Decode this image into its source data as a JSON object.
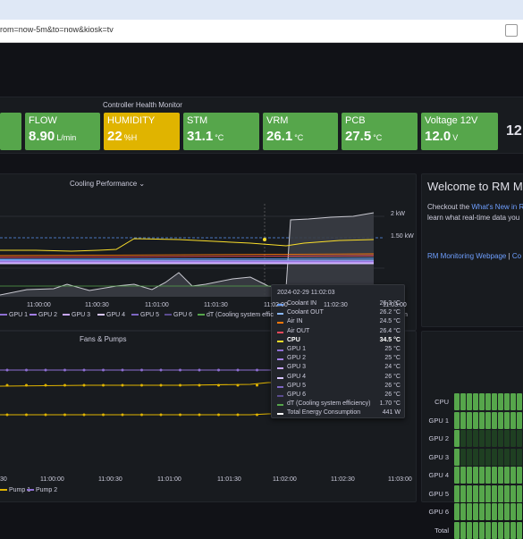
{
  "browser": {
    "url": "rom=now-5m&to=now&kiosk=tv"
  },
  "controller_health": {
    "title": "Controller Health Monitor",
    "stats": [
      {
        "label": "FLOW",
        "value": "8.90",
        "unit": "L/min",
        "color": "#56a64b"
      },
      {
        "label": "HUMIDITY",
        "value": "22",
        "unit": "%H",
        "color": "#e0b400"
      },
      {
        "label": "STM",
        "value": "31.1",
        "unit": "°C",
        "color": "#56a64b"
      },
      {
        "label": "VRM",
        "value": "26.1",
        "unit": "°C",
        "color": "#56a64b"
      },
      {
        "label": "PCB",
        "value": "27.5",
        "unit": "°C",
        "color": "#56a64b"
      },
      {
        "label": "Voltage 12V",
        "value": "12.0",
        "unit": "V",
        "color": "#56a64b"
      }
    ],
    "partial_next_value": "12"
  },
  "cooling": {
    "title": "Cooling Performance",
    "right_axis": [
      "2 kW",
      "1.50 kW"
    ],
    "x_ticks": [
      "11:00:00",
      "11:00:30",
      "11:01:00",
      "11:01:30",
      "11:02:00",
      "11:02:30",
      "11:03:00"
    ],
    "legend": [
      {
        "name": "GPU 1",
        "color": "#8e6fd3"
      },
      {
        "name": "GPU 2",
        "color": "#a37fe6"
      },
      {
        "name": "GPU 3",
        "color": "#c8a6ff"
      },
      {
        "name": "GPU 4",
        "color": "#d9c7ff"
      },
      {
        "name": "GPU 5",
        "color": "#7d66c2"
      },
      {
        "name": "GPU 6",
        "color": "#5a4b8f"
      },
      {
        "name": "dT (Cooling system effic",
        "color": "#56a64b"
      }
    ],
    "legend_tail": "n"
  },
  "tooltip": {
    "time": "2024-02-29 11:02:03",
    "rows": [
      {
        "name": "Coolant IN",
        "value": "26.3 °C",
        "color": "#5794f2",
        "bold": false
      },
      {
        "name": "Coolant OUT",
        "value": "26.2 °C",
        "color": "#8ab8ff",
        "bold": false
      },
      {
        "name": "Air IN",
        "value": "24.5 °C",
        "color": "#ff780a",
        "bold": false
      },
      {
        "name": "Air OUT",
        "value": "26.4 °C",
        "color": "#f2495c",
        "bold": false
      },
      {
        "name": "CPU",
        "value": "34.5 °C",
        "color": "#fade2a",
        "bold": true
      },
      {
        "name": "GPU 1",
        "value": "25 °C",
        "color": "#8e6fd3",
        "bold": false
      },
      {
        "name": "GPU 2",
        "value": "25 °C",
        "color": "#a37fe6",
        "bold": false
      },
      {
        "name": "GPU 3",
        "value": "24 °C",
        "color": "#c8a6ff",
        "bold": false
      },
      {
        "name": "GPU 4",
        "value": "26 °C",
        "color": "#d9c7ff",
        "bold": false
      },
      {
        "name": "GPU 5",
        "value": "26 °C",
        "color": "#7d66c2",
        "bold": false
      },
      {
        "name": "GPU 6",
        "value": "26 °C",
        "color": "#5a4b8f",
        "bold": false
      },
      {
        "name": "dT (Cooling system efficiency)",
        "value": "1.70 °C",
        "color": "#56a64b",
        "bold": false
      },
      {
        "name": "Total Energy Consumption",
        "value": "441 W",
        "color": "#ffffff",
        "bold": false
      }
    ]
  },
  "fans": {
    "title": "Fans & Pumps",
    "x_ticks": [
      "30",
      "11:00:00",
      "11:00:30",
      "11:01:00",
      "11:01:30",
      "11:02:00",
      "11:02:30",
      "11:03:00"
    ],
    "legend": [
      {
        "name": "Pump 1",
        "color": "#e0b400"
      },
      {
        "name": "Pump 2",
        "color": "#8e6fd3"
      }
    ]
  },
  "welcome": {
    "title": "Welcome to RM M",
    "line1_prefix": "Checkout the ",
    "line1_link": "What's New in R",
    "line2": "learn what real-time data you",
    "link_main": "RM Monitoring Webpage",
    "link_sep": " | ",
    "link_tail": "Co"
  },
  "heatmap": {
    "rows": [
      "CPU",
      "GPU 1",
      "GPU 2",
      "GPU 3",
      "GPU 4",
      "GPU 5",
      "GPU 6",
      "Total"
    ],
    "bright_color": "#56a64b",
    "dim_color": "#1f3f22"
  }
}
